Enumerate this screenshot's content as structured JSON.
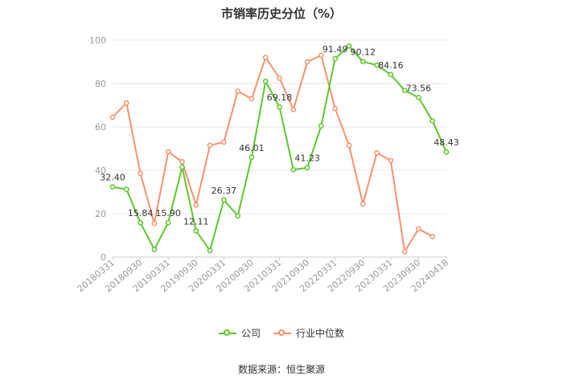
{
  "chart_data": {
    "type": "line",
    "title": "市销率历史分位（%）",
    "source": "数据来源：恒生聚源",
    "ylim": [
      0,
      100
    ],
    "yticks": [
      0,
      20,
      40,
      60,
      80,
      100
    ],
    "grid": true,
    "legend_position": "bottom",
    "x": [
      "20180331",
      "20180630",
      "20180930",
      "20181231",
      "20190331",
      "20190630",
      "20190930",
      "20191231",
      "20200331",
      "20200630",
      "20200930",
      "20201231",
      "20210331",
      "20210630",
      "20210930",
      "20211231",
      "20220331",
      "20220630",
      "20220930",
      "20221231",
      "20230331",
      "20230630",
      "20230930",
      "20231231",
      "20240418"
    ],
    "xtick_labels": [
      "20180331",
      "20180930",
      "20190331",
      "20190930",
      "20200331",
      "20200930",
      "20210331",
      "20210930",
      "20220331",
      "20220930",
      "20230331",
      "20230930",
      "20240418"
    ],
    "series": [
      {
        "name": "公司",
        "color": "#5cc72b",
        "values": [
          32.4,
          31.2,
          15.84,
          3.5,
          15.9,
          41.5,
          12.11,
          3.0,
          26.37,
          19.0,
          46.01,
          81.0,
          69.18,
          40.3,
          41.23,
          60.5,
          91.49,
          97.3,
          90.12,
          88.5,
          84.16,
          76.8,
          73.56,
          62.8,
          48.43
        ],
        "labels": {
          "0": "32.40",
          "2": "15.84",
          "4": "15.90",
          "6": "12.11",
          "8": "26.37",
          "10": "46.01",
          "12": "69.18",
          "14": "41.23",
          "16": "91.49",
          "18": "90.12",
          "20": "84.16",
          "22": "73.56",
          "24": "48.43"
        }
      },
      {
        "name": "行业中位数",
        "color": "#f5926a",
        "values": [
          64.5,
          71.0,
          38.5,
          15.5,
          48.5,
          44.0,
          24.0,
          51.5,
          53.0,
          76.5,
          73.0,
          92.0,
          82.5,
          68.0,
          90.0,
          93.0,
          68.5,
          51.5,
          24.5,
          48.0,
          44.5,
          2.5,
          13.0,
          9.5,
          null
        ]
      }
    ]
  }
}
